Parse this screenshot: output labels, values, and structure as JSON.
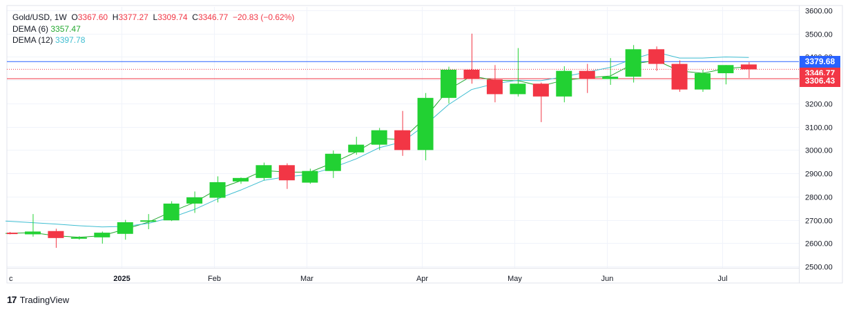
{
  "legend": {
    "symbol": "Gold/USD",
    "interval": "1W",
    "o_label": "O",
    "o_value": "3367.60",
    "h_label": "H",
    "h_value": "3377.27",
    "l_label": "L",
    "l_value": "3309.74",
    "c_label": "C",
    "c_value": "3346.77",
    "change": "−20.83 (−0.62%)",
    "dema6_label": "DEMA (6)",
    "dema6_value": "3357.47",
    "dema12_label": "DEMA (12)",
    "dema12_value": "3397.78"
  },
  "price_tags": [
    {
      "label": "3379.68",
      "value": 3379.68,
      "color": "#2962ff"
    },
    {
      "label": "3346.77",
      "value": 3346.77,
      "color": "#f23645"
    },
    {
      "label": "3306.43",
      "value": 3306.43,
      "color": "#f23645"
    }
  ],
  "brand": {
    "logo": "17",
    "name": "TradingView"
  },
  "colors": {
    "up": "#22d133",
    "down": "#f23645",
    "dema6": "#22a82f",
    "dema12": "#3dbdd1",
    "grid": "#f0f3fa",
    "axis_text": "#131722"
  },
  "chart_data": {
    "type": "candlestick",
    "title": "",
    "ylim": [
      2500,
      3600
    ],
    "y_ticks": [
      "2500.00",
      "2600.00",
      "2700.00",
      "2800.00",
      "2900.00",
      "3000.00",
      "3100.00",
      "3200.00",
      "3300.00",
      "3400.00",
      "3500.00",
      "3600.00"
    ],
    "x_ticks": [
      {
        "label": "c",
        "week": -0.2
      },
      {
        "label": "2025",
        "week": 4.85
      },
      {
        "label": "Feb",
        "week": 8.85
      },
      {
        "label": "Mar",
        "week": 12.85
      },
      {
        "label": "Apr",
        "week": 17.85
      },
      {
        "label": "May",
        "week": 21.85
      },
      {
        "label": "Jun",
        "week": 25.85
      },
      {
        "label": "Jul",
        "week": 30.85
      }
    ],
    "grid": true,
    "candles": [
      {
        "o": 2645,
        "h": 2648,
        "l": 2638,
        "c": 2640
      },
      {
        "o": 2638,
        "h": 2725,
        "l": 2628,
        "c": 2650
      },
      {
        "o": 2652,
        "h": 2662,
        "l": 2580,
        "c": 2622
      },
      {
        "o": 2622,
        "h": 2630,
        "l": 2615,
        "c": 2625
      },
      {
        "o": 2625,
        "h": 2650,
        "l": 2598,
        "c": 2645
      },
      {
        "o": 2640,
        "h": 2700,
        "l": 2615,
        "c": 2690
      },
      {
        "o": 2692,
        "h": 2725,
        "l": 2660,
        "c": 2698
      },
      {
        "o": 2698,
        "h": 2780,
        "l": 2695,
        "c": 2770
      },
      {
        "o": 2770,
        "h": 2822,
        "l": 2730,
        "c": 2797
      },
      {
        "o": 2795,
        "h": 2887,
        "l": 2775,
        "c": 2862
      },
      {
        "o": 2865,
        "h": 2882,
        "l": 2855,
        "c": 2880
      },
      {
        "o": 2880,
        "h": 2946,
        "l": 2870,
        "c": 2935
      },
      {
        "o": 2935,
        "h": 2943,
        "l": 2833,
        "c": 2870
      },
      {
        "o": 2860,
        "h": 2920,
        "l": 2855,
        "c": 2910
      },
      {
        "o": 2910,
        "h": 2998,
        "l": 2880,
        "c": 2984
      },
      {
        "o": 2990,
        "h": 3057,
        "l": 2980,
        "c": 3023
      },
      {
        "o": 3023,
        "h": 3095,
        "l": 3000,
        "c": 3085
      },
      {
        "o": 3085,
        "h": 3168,
        "l": 2975,
        "c": 3000
      },
      {
        "o": 3000,
        "h": 3245,
        "l": 2956,
        "c": 3224
      },
      {
        "o": 3224,
        "h": 3358,
        "l": 3200,
        "c": 3345
      },
      {
        "o": 3345,
        "h": 3500,
        "l": 3285,
        "c": 3305
      },
      {
        "o": 3303,
        "h": 3365,
        "l": 3205,
        "c": 3240
      },
      {
        "o": 3240,
        "h": 3438,
        "l": 3230,
        "c": 3285
      },
      {
        "o": 3285,
        "h": 3290,
        "l": 3120,
        "c": 3230
      },
      {
        "o": 3230,
        "h": 3360,
        "l": 3205,
        "c": 3340
      },
      {
        "o": 3340,
        "h": 3370,
        "l": 3245,
        "c": 3305
      },
      {
        "o": 3305,
        "h": 3395,
        "l": 3280,
        "c": 3315
      },
      {
        "o": 3315,
        "h": 3451,
        "l": 3290,
        "c": 3433
      },
      {
        "o": 3433,
        "h": 3445,
        "l": 3340,
        "c": 3370
      },
      {
        "o": 3370,
        "h": 3385,
        "l": 3250,
        "c": 3260
      },
      {
        "o": 3260,
        "h": 3345,
        "l": 3250,
        "c": 3330
      },
      {
        "o": 3330,
        "h": 3365,
        "l": 3282,
        "c": 3365
      },
      {
        "o": 3367.6,
        "h": 3377.27,
        "l": 3309.74,
        "c": 3346.77
      }
    ],
    "series": [
      {
        "name": "DEMA (6)",
        "values": [
          2642,
          2645,
          2632,
          2625,
          2632,
          2660,
          2690,
          2735,
          2775,
          2832,
          2868,
          2912,
          2905,
          2905,
          2945,
          2992,
          3050,
          3045,
          3140,
          3260,
          3318,
          3300,
          3298,
          3275,
          3300,
          3310,
          3318,
          3370,
          3385,
          3340,
          3330,
          3350,
          3357.47
        ]
      },
      {
        "name": "DEMA (12)",
        "values": [
          2695,
          2688,
          2682,
          2675,
          2670,
          2672,
          2685,
          2710,
          2745,
          2790,
          2828,
          2870,
          2885,
          2895,
          2925,
          2962,
          3010,
          3035,
          3108,
          3195,
          3260,
          3285,
          3300,
          3298,
          3315,
          3335,
          3355,
          3392,
          3420,
          3395,
          3395,
          3400,
          3397.78
        ]
      }
    ]
  }
}
